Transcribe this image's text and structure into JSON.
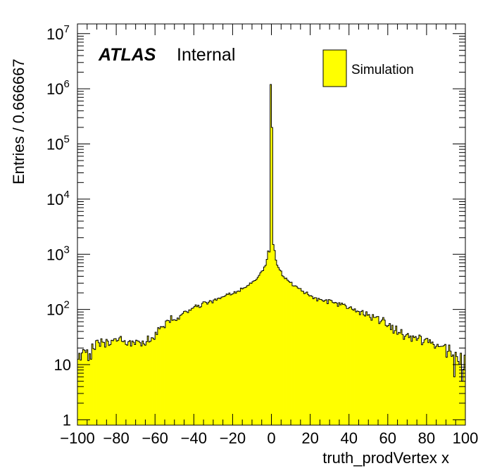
{
  "chart_data": {
    "type": "bar",
    "style": "step-histogram",
    "y_scale": "log",
    "xlim": [
      -100,
      100
    ],
    "ylim": [
      0.8,
      15000000
    ],
    "bin_width": 0.666667,
    "x_ticks": [
      -100,
      -80,
      -60,
      -40,
      -20,
      0,
      20,
      40,
      60,
      80,
      100
    ],
    "x_tick_labels": [
      "−100",
      "−80",
      "−60",
      "−40",
      "−20",
      "0",
      "20",
      "40",
      "60",
      "80",
      "100"
    ],
    "y_ticks": [
      {
        "value": 1,
        "base": "1",
        "exp": ""
      },
      {
        "value": 10,
        "base": "10",
        "exp": ""
      },
      {
        "value": 100,
        "base": "10",
        "exp": "2"
      },
      {
        "value": 1000,
        "base": "10",
        "exp": "3"
      },
      {
        "value": 10000,
        "base": "10",
        "exp": "4"
      },
      {
        "value": 100000,
        "base": "10",
        "exp": "5"
      },
      {
        "value": 1000000,
        "base": "10",
        "exp": "6"
      },
      {
        "value": 10000000,
        "base": "10",
        "exp": "7"
      }
    ],
    "xlabel": "truth_prodVertex x",
    "ylabel": "Entries / 0.666667",
    "label_main": "ATLAS",
    "label_sub": "Internal",
    "legend": {
      "position": "top-right",
      "entries": [
        {
          "name": "Simulation",
          "color": "#ffff00"
        }
      ]
    },
    "series": [
      {
        "name": "Simulation",
        "color": "#ffff00",
        "edge_color": "#000000",
        "profile_x": [
          -100,
          -98,
          -96,
          -94,
          -92,
          -90,
          -85,
          -80,
          -75,
          -70,
          -65,
          -60,
          -58,
          -55,
          -50,
          -45,
          -40,
          -35,
          -30,
          -25,
          -20,
          -15,
          -10,
          -7,
          -5,
          -3,
          -2,
          -1,
          0,
          1,
          2,
          3,
          5,
          7,
          10,
          15,
          20,
          25,
          30,
          35,
          40,
          45,
          50,
          55,
          60,
          65,
          70,
          75,
          80,
          85,
          90,
          94,
          96,
          98,
          100
        ],
        "profile_y": [
          13,
          15,
          16,
          17,
          18,
          24,
          26,
          27,
          26,
          26,
          27,
          30,
          42,
          55,
          70,
          88,
          108,
          125,
          145,
          165,
          195,
          240,
          310,
          380,
          480,
          650,
          900,
          2000,
          1200000,
          2000,
          900,
          650,
          480,
          380,
          300,
          220,
          175,
          155,
          140,
          125,
          105,
          90,
          80,
          70,
          52,
          40,
          32,
          30,
          26,
          24,
          20,
          17,
          13,
          14,
          15
        ],
        "special_bins": [
          {
            "x": -0.33,
            "y": 1200000
          },
          {
            "x": 0.33,
            "y": 200000
          },
          {
            "x": -1.0,
            "y": 1100
          },
          {
            "x": 1.0,
            "y": 1500
          },
          {
            "x": 94.3,
            "y": 6
          },
          {
            "x": 98.3,
            "y": 5
          }
        ]
      }
    ],
    "grid": false
  }
}
